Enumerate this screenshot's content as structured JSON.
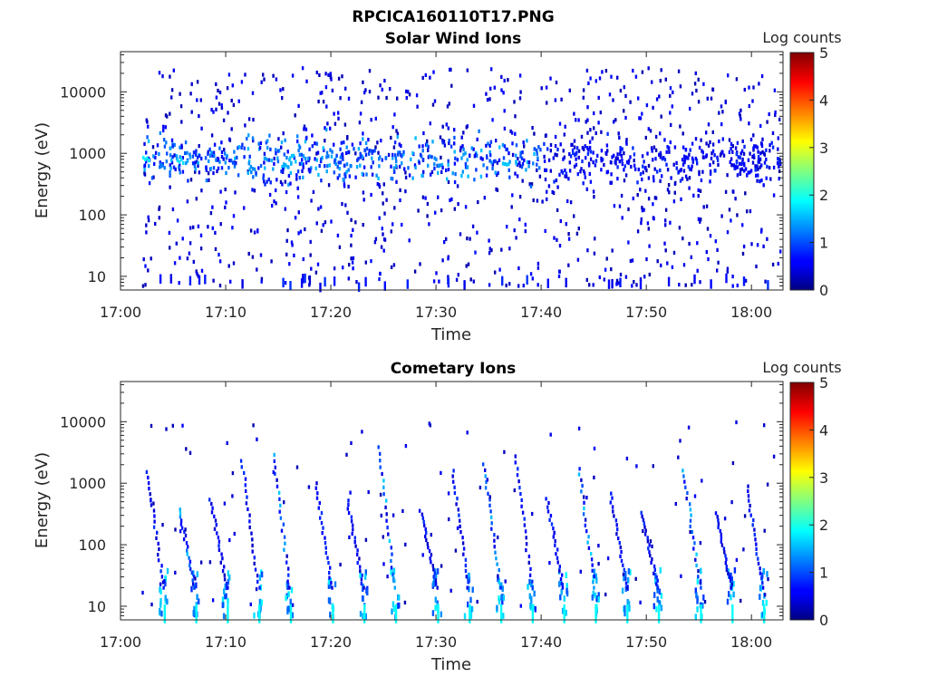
{
  "figure": {
    "title": "RPCICA160110T17.PNG"
  },
  "colorbar": {
    "label": "Log counts",
    "ticks": [
      "0",
      "1",
      "2",
      "3",
      "4",
      "5"
    ],
    "range": [
      0,
      5
    ],
    "colormap": "jet"
  },
  "chart_data": [
    {
      "type": "heatmap",
      "title": "Solar Wind Ions",
      "xlabel": "Time",
      "ylabel": "Energy (eV)",
      "x_ticks": [
        "17:00",
        "17:10",
        "17:20",
        "17:30",
        "17:40",
        "17:50",
        "18:00"
      ],
      "y_ticks": [
        "10",
        "100",
        "1000",
        "10000"
      ],
      "x_range": [
        "17:00",
        "18:03"
      ],
      "y_range": [
        6,
        45000
      ],
      "y_scale": "log",
      "colorbar_range": [
        0,
        5
      ],
      "description_of_data": "Scattered low counts across all energies; dense band near 800-1000 eV",
      "band": {
        "energy_center": 800,
        "log_counts_max": 1.8
      },
      "points": [
        {
          "t": "17:02",
          "e": 800,
          "v": 1.8
        },
        {
          "t": "17:03",
          "e": 650,
          "v": 1.2
        },
        {
          "t": "17:05",
          "e": 700,
          "v": 1.7
        },
        {
          "t": "17:06",
          "e": 950,
          "v": 0.8
        },
        {
          "t": "17:08",
          "e": 900,
          "v": 1.2
        },
        {
          "t": "17:10",
          "e": 750,
          "v": 1.0
        },
        {
          "t": "17:12",
          "e": 600,
          "v": 1.3
        },
        {
          "t": "17:13",
          "e": 350,
          "v": 0.8
        },
        {
          "t": "17:15",
          "e": 700,
          "v": 1.5
        },
        {
          "t": "17:16",
          "e": 800,
          "v": 1.6
        },
        {
          "t": "17:19",
          "e": 1000,
          "v": 1.2
        },
        {
          "t": "17:20",
          "e": 800,
          "v": 0.9
        },
        {
          "t": "17:23",
          "e": 1100,
          "v": 1.0
        },
        {
          "t": "17:26",
          "e": 950,
          "v": 1.0
        },
        {
          "t": "17:29",
          "e": 700,
          "v": 1.3
        },
        {
          "t": "17:32",
          "e": 900,
          "v": 1.4
        },
        {
          "t": "17:36",
          "e": 750,
          "v": 1.6
        },
        {
          "t": "17:39",
          "e": 1200,
          "v": 1.0
        },
        {
          "t": "17:42",
          "e": 1000,
          "v": 0.8
        },
        {
          "t": "17:47",
          "e": 800,
          "v": 0.5
        },
        {
          "t": "17:53",
          "e": 900,
          "v": 0.6
        },
        {
          "t": "17:58",
          "e": 600,
          "v": 0.6
        },
        {
          "t": "18:00",
          "e": 400,
          "v": 0.7
        }
      ]
    },
    {
      "type": "heatmap",
      "title": "Cometary Ions",
      "xlabel": "Time",
      "ylabel": "Energy (eV)",
      "x_ticks": [
        "17:00",
        "17:10",
        "17:20",
        "17:30",
        "17:40",
        "17:50",
        "18:00"
      ],
      "y_ticks": [
        "10",
        "100",
        "1000",
        "10000"
      ],
      "x_range": [
        "17:00",
        "18:03"
      ],
      "y_range": [
        6,
        45000
      ],
      "y_scale": "log",
      "colorbar_range": [
        0,
        5
      ],
      "description_of_data": "Periodic streaks roughly every 3.3 minutes, strongest at 6-40 eV, dispersing upward to several keV",
      "streak_times": [
        "17:04",
        "17:07",
        "17:10",
        "17:13",
        "17:16",
        "17:20",
        "17:23",
        "17:26",
        "17:30",
        "17:33",
        "17:36",
        "17:39",
        "17:42",
        "17:45",
        "17:48",
        "17:51",
        "17:55",
        "17:58",
        "18:01"
      ],
      "streak_low_energy_log_counts": 1.9,
      "streak_peak_energy_range": [
        6,
        40
      ]
    }
  ]
}
